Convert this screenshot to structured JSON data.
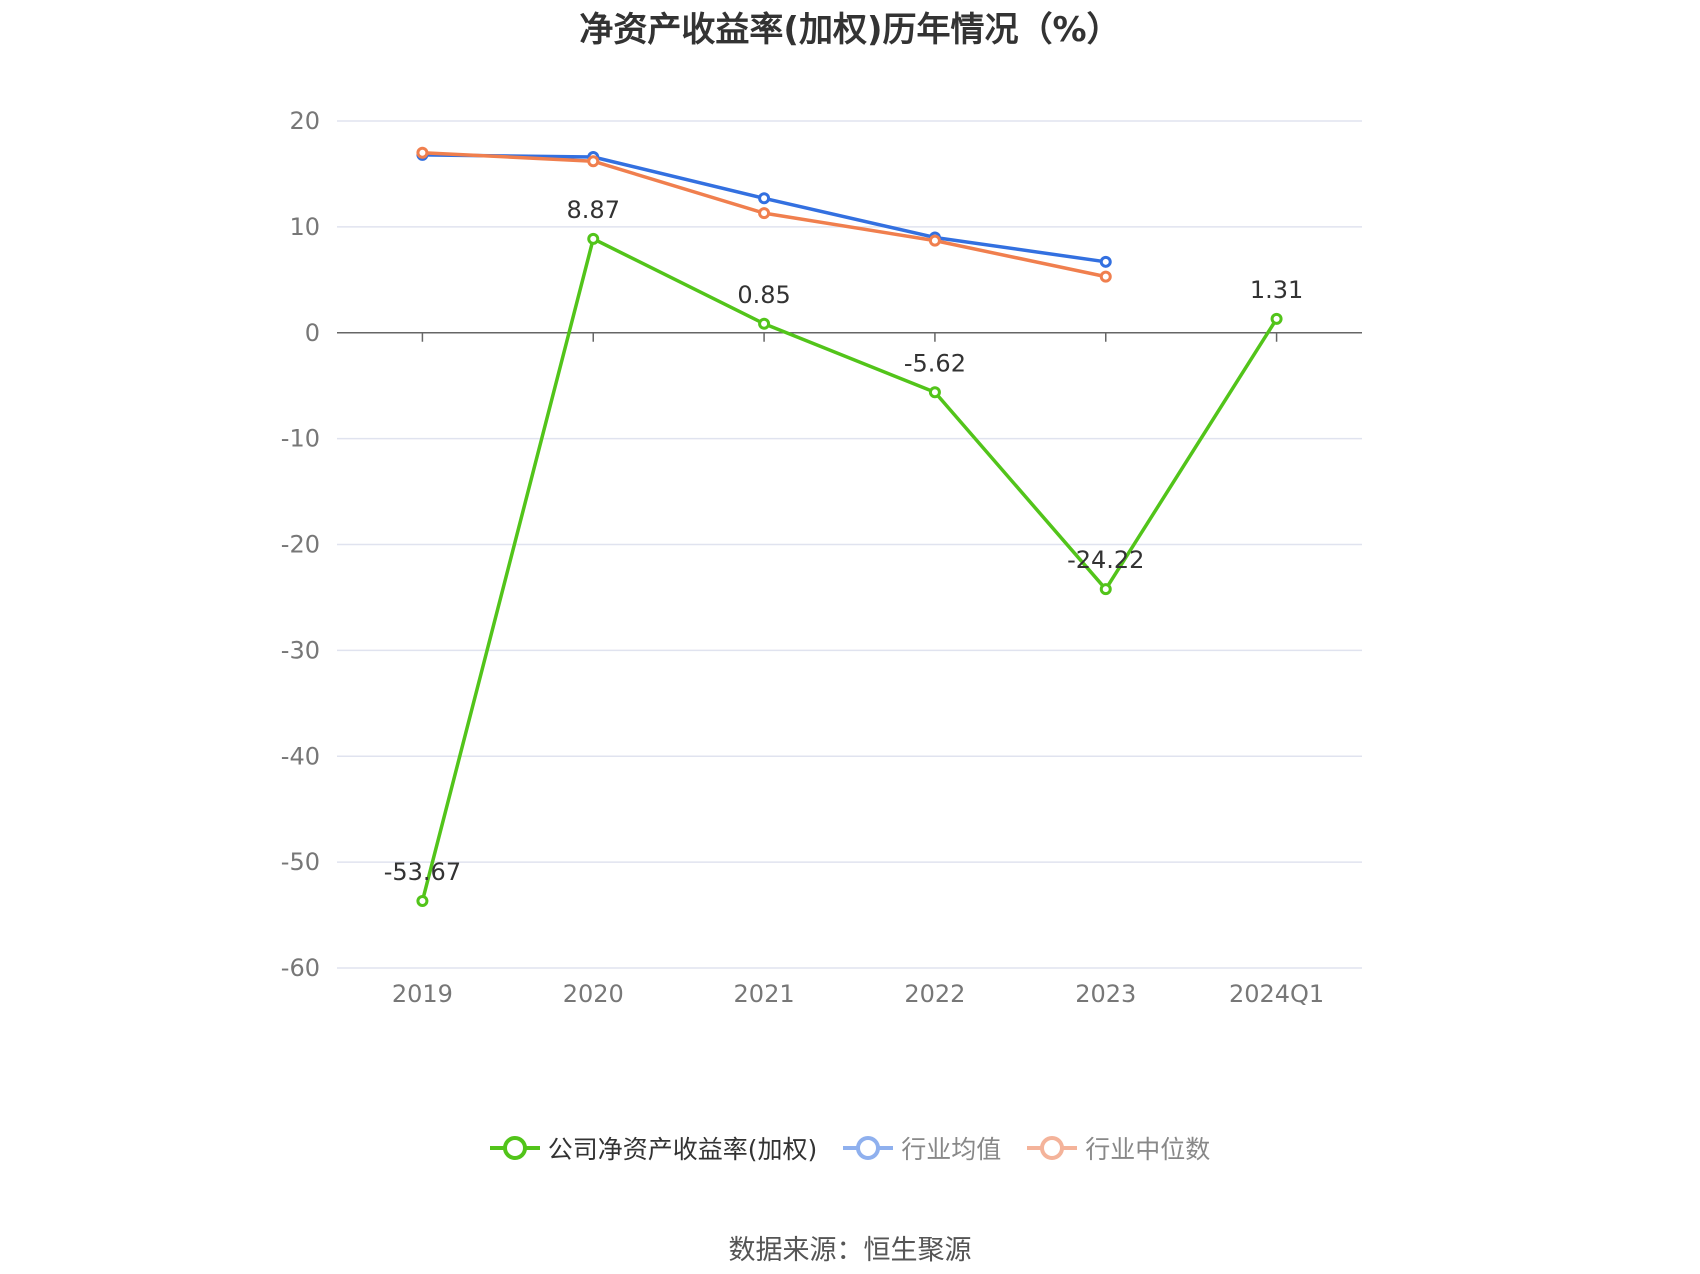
{
  "chart_data": {
    "type": "line",
    "title": "净资产收益率(加权)历年情况（%）",
    "categories": [
      "2019",
      "2020",
      "2021",
      "2022",
      "2023",
      "2024Q1"
    ],
    "ylim": [
      -60,
      20
    ],
    "yticks": [
      20,
      10,
      0,
      -10,
      -20,
      -30,
      -40,
      -50,
      -60
    ],
    "grid": true,
    "legend_position": "bottom",
    "series": [
      {
        "name": "公司净资产收益率(加权)",
        "color": "#52c41a",
        "values": [
          -53.67,
          8.87,
          0.85,
          -5.62,
          -24.22,
          1.31
        ],
        "labels": [
          "-53.67",
          "8.87",
          "0.85",
          "-5.62",
          "-24.22",
          "1.31"
        ]
      },
      {
        "name": "行业均值",
        "color": "#3370e0",
        "legend_color": "#8fb0ee",
        "values": [
          16.8,
          16.6,
          12.7,
          9.0,
          6.7,
          null
        ]
      },
      {
        "name": "行业中位数",
        "color": "#f07f4e",
        "legend_color": "#f4b39a",
        "values": [
          17.0,
          16.2,
          11.3,
          8.7,
          5.3,
          null
        ]
      }
    ]
  },
  "source": "数据来源：恒生聚源"
}
